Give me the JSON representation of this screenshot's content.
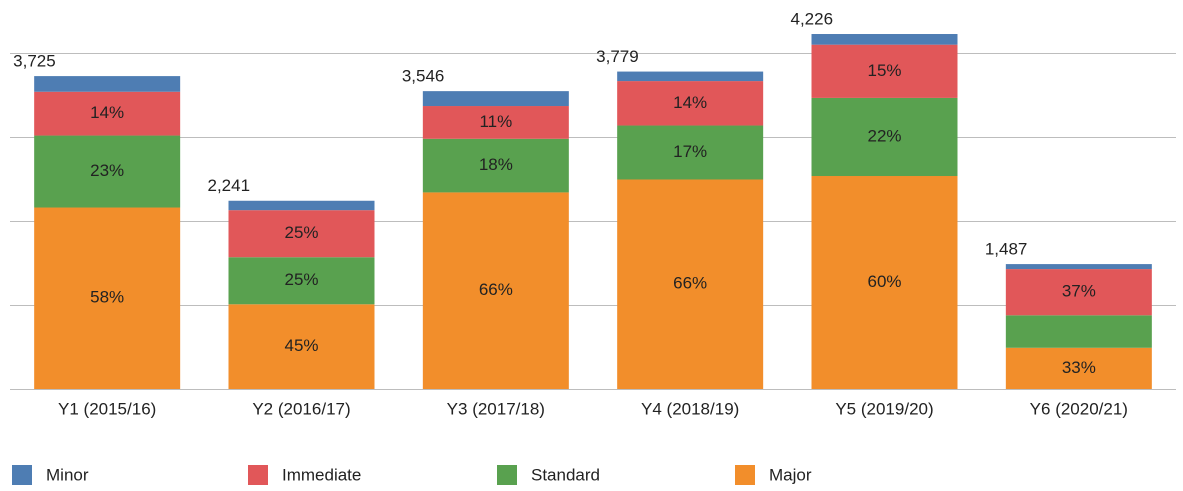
{
  "chart_data": {
    "type": "stacked_bar",
    "categories": [
      "Y1 (2015/16)",
      "Y2 (2016/17)",
      "Y3 (2017/18)",
      "Y4 (2018/19)",
      "Y5 (2019/20)",
      "Y6 (2020/21)"
    ],
    "totals": {
      "values": [
        3725,
        2241,
        3546,
        3779,
        4226,
        1487
      ],
      "value_labels": [
        "3,725",
        "2,241",
        "3,546",
        "3,779",
        "4,226",
        "1,487"
      ]
    },
    "series": [
      {
        "name": "Minor",
        "color": "#4e7db3",
        "values": [
          5,
          5,
          5,
          3,
          3,
          4
        ],
        "value_labels": [
          null,
          null,
          null,
          null,
          null,
          null
        ]
      },
      {
        "name": "Immediate",
        "color": "#e15759",
        "values": [
          14,
          25,
          11,
          14,
          15,
          37
        ],
        "value_labels": [
          "14%",
          "25%",
          "11%",
          "14%",
          "15%",
          "37%"
        ]
      },
      {
        "name": "Standard",
        "color": "#59a14f",
        "values": [
          23,
          25,
          18,
          17,
          22,
          26
        ],
        "value_labels": [
          "23%",
          "25%",
          "18%",
          "17%",
          "22%",
          null
        ]
      },
      {
        "name": "Major",
        "color": "#f28e2b",
        "values": [
          58,
          45,
          66,
          66,
          60,
          33
        ],
        "value_labels": [
          "58%",
          "45%",
          "66%",
          "66%",
          "60%",
          "33%"
        ]
      }
    ],
    "ylim": [
      0,
      4500
    ],
    "yticks": [
      0,
      1000,
      2000,
      3000,
      4000
    ],
    "grid": true
  }
}
